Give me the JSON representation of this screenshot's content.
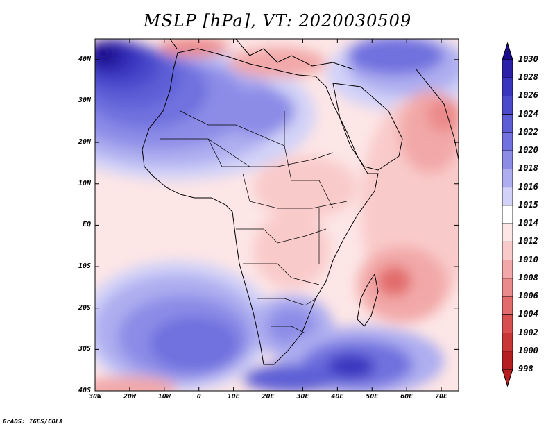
{
  "title": "MSLP [hPa], VT: 2020030509",
  "footer": "GrADS: IGES/COLA",
  "map": {
    "variable": "Mean sea level pressure",
    "units": "hPa",
    "valid_time": "2020030509",
    "lon_range": [
      -30,
      75
    ],
    "lat_range": [
      -40,
      45
    ],
    "lat_ticks": [
      {
        "value": 40,
        "label": "40N"
      },
      {
        "value": 30,
        "label": "30N"
      },
      {
        "value": 20,
        "label": "20N"
      },
      {
        "value": 10,
        "label": "10N"
      },
      {
        "value": 0,
        "label": "EQ"
      },
      {
        "value": -10,
        "label": "10S"
      },
      {
        "value": -20,
        "label": "20S"
      },
      {
        "value": -30,
        "label": "30S"
      },
      {
        "value": -40,
        "label": "40S"
      }
    ],
    "lon_ticks": [
      {
        "value": -30,
        "label": "30W"
      },
      {
        "value": -20,
        "label": "20W"
      },
      {
        "value": -10,
        "label": "10W"
      },
      {
        "value": 0,
        "label": "0"
      },
      {
        "value": 10,
        "label": "10E"
      },
      {
        "value": 20,
        "label": "20E"
      },
      {
        "value": 30,
        "label": "30E"
      },
      {
        "value": 40,
        "label": "40E"
      },
      {
        "value": 50,
        "label": "50E"
      },
      {
        "value": 60,
        "label": "60E"
      },
      {
        "value": 70,
        "label": "70E"
      }
    ]
  },
  "colorbar": {
    "levels": [
      {
        "label": "1030",
        "color": "#1a0a8c"
      },
      {
        "label": "1028",
        "color": "#2b20a8"
      },
      {
        "label": "1026",
        "color": "#3a35bf"
      },
      {
        "label": "1024",
        "color": "#4a4acb"
      },
      {
        "label": "1022",
        "color": "#5d5ed6"
      },
      {
        "label": "1020",
        "color": "#7171df"
      },
      {
        "label": "1018",
        "color": "#8c8ce7"
      },
      {
        "label": "1016",
        "color": "#adadf0"
      },
      {
        "label": "1015",
        "color": "#d2d2f8"
      },
      {
        "label": "1014",
        "color": "#ffffff"
      },
      {
        "label": "1012",
        "color": "#fde6e6"
      },
      {
        "label": "1010",
        "color": "#f9caca"
      },
      {
        "label": "1008",
        "color": "#f2a8a8"
      },
      {
        "label": "1006",
        "color": "#eb8a8a"
      },
      {
        "label": "1004",
        "color": "#e26c6c"
      },
      {
        "label": "1002",
        "color": "#d84f4f"
      },
      {
        "label": "1000",
        "color": "#c93636"
      },
      {
        "label": "998",
        "color": "#b51f1f"
      }
    ]
  }
}
